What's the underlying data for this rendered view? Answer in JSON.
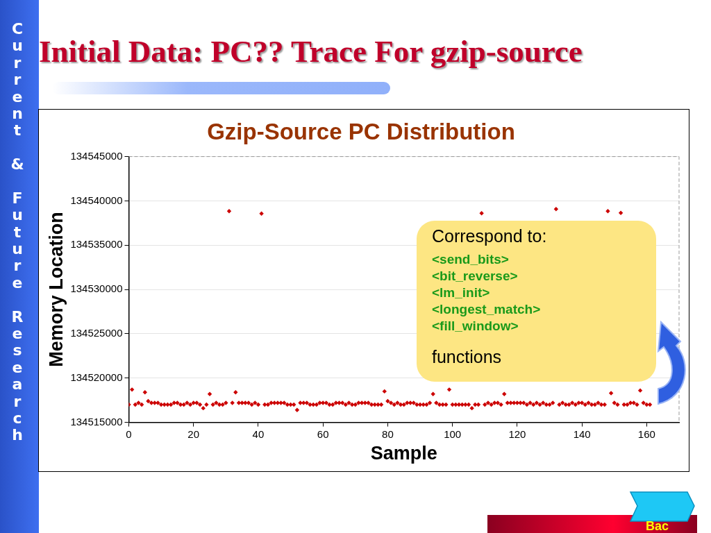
{
  "chart_data": {
    "type": "scatter",
    "title": "Initial Data: PC?? Trace For gzip-source",
    "subtitle": "Gzip-Source PC Distribution",
    "xlabel": "Sample",
    "ylabel": "Memory Location",
    "annotations": [
      "Current & Future Research",
      "Correspond to:",
      "<send_bits>",
      "<bit_reverse>",
      "<lm_init>",
      "<longest_match>",
      "<fill_window>",
      "functions",
      "Bac"
    ],
    "x": [
      0,
      1,
      2,
      3,
      4,
      5,
      6,
      7,
      8,
      9,
      10,
      11,
      12,
      13,
      14,
      15,
      16,
      17,
      18,
      19,
      20,
      21,
      22,
      23,
      24,
      25,
      26,
      27,
      28,
      29,
      30,
      31,
      32,
      33,
      34,
      35,
      36,
      37,
      38,
      39,
      40,
      41,
      42,
      43,
      44,
      45,
      46,
      47,
      48,
      49,
      50,
      51,
      52,
      53,
      54,
      55,
      56,
      57,
      58,
      59,
      60,
      61,
      62,
      63,
      64,
      65,
      66,
      67,
      68,
      69,
      70,
      71,
      72,
      73,
      74,
      75,
      76,
      77,
      78,
      79,
      80,
      81,
      82,
      83,
      84,
      85,
      86,
      87,
      88,
      89,
      90,
      91,
      92,
      93,
      94,
      95,
      96,
      97,
      98,
      99,
      100,
      101,
      102,
      103,
      104,
      105,
      106,
      107,
      108,
      109,
      110,
      111,
      112,
      113,
      114,
      115,
      116,
      117,
      118,
      119,
      120,
      121,
      122,
      123,
      124,
      125,
      126,
      127,
      128,
      129,
      130,
      131,
      132,
      133,
      134,
      135,
      136,
      137,
      138,
      139,
      140,
      141,
      142,
      143,
      144,
      145,
      146,
      147,
      148,
      149,
      150,
      151,
      152,
      153,
      154,
      155,
      156,
      157,
      158,
      159,
      160,
      161
    ],
    "series": [
      {
        "color": "#cc0000",
        "values": [
          134517000,
          134518700,
          134517000,
          134517200,
          134517000,
          134518400,
          134517400,
          134517200,
          134517200,
          134517200,
          134517000,
          134517000,
          134517000,
          134517000,
          134517200,
          134517200,
          134517000,
          134517000,
          134517200,
          134517000,
          134517200,
          134517200,
          134517000,
          134516600,
          134517000,
          134518200,
          134517000,
          134517200,
          134517000,
          134517000,
          134517200,
          134538840,
          134517200,
          134518400,
          134517200,
          134517200,
          134517200,
          134517200,
          134517000,
          134517200,
          134517000,
          134538560,
          134517000,
          134517000,
          134517200,
          134517200,
          134517200,
          134517200,
          134517200,
          134517000,
          134517000,
          134517000,
          134516400,
          134517200,
          134517200,
          134517200,
          134517000,
          134517000,
          134517000,
          134517200,
          134517200,
          134517200,
          134517000,
          134517000,
          134517200,
          134517200,
          134517200,
          134517000,
          134517200,
          134517000,
          134517000,
          134517200,
          134517200,
          134517200,
          134517200,
          134517000,
          134517000,
          134517000,
          134517000,
          134518500,
          134517400,
          134517200,
          134517000,
          134517200,
          134517000,
          134517000,
          134517200,
          134517200,
          134517200,
          134517000,
          134517000,
          134517000,
          134517000,
          134517200,
          134518200,
          134517200,
          134517000,
          134517000,
          134517000,
          134518700,
          134517000,
          134517000,
          134517000,
          134517000,
          134517000,
          134517000,
          134516600,
          134517000,
          134517000,
          134538600,
          134517000,
          134517200,
          134517000,
          134517200,
          134517200,
          134517000,
          134518200,
          134517200,
          134517200,
          134517200,
          134517200,
          134517200,
          134517200,
          134517000,
          134517200,
          134517000,
          134517200,
          134517000,
          134517200,
          134517000,
          134517000,
          134517200,
          134539080,
          134517000,
          134517200,
          134517000,
          134517000,
          134517200,
          134517000,
          134517200,
          134517200,
          134517000,
          134517200,
          134517000,
          134517000,
          134517200,
          134517000,
          134517000,
          134538840,
          134518300,
          134517200,
          134517000,
          134538640,
          134517000,
          134517000,
          134517200,
          134517200,
          134517000,
          134518600,
          134517200,
          134517000,
          134517000
        ]
      }
    ],
    "xlim": [
      0,
      170
    ],
    "xticks": [
      0,
      20,
      40,
      60,
      80,
      100,
      120,
      140,
      160
    ],
    "ylim": [
      134515000,
      134545000
    ],
    "yticks": [
      134515000,
      134520000,
      134525000,
      134530000,
      134535000,
      134540000,
      134545000
    ],
    "grid": "y",
    "legend": false,
    "marker": "diamond"
  }
}
